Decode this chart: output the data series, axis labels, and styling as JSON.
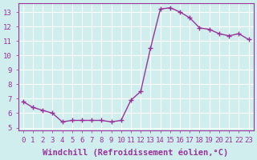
{
  "x": [
    0,
    1,
    2,
    3,
    4,
    5,
    6,
    7,
    8,
    9,
    10,
    11,
    12,
    13,
    14,
    15,
    16,
    17,
    18,
    19,
    20,
    21,
    22,
    23
  ],
  "y": [
    6.8,
    6.4,
    6.2,
    6.0,
    5.4,
    5.5,
    5.5,
    5.5,
    5.5,
    5.4,
    5.5,
    6.9,
    7.5,
    10.5,
    13.2,
    13.3,
    13.0,
    12.6,
    11.9,
    11.8,
    11.5,
    11.35,
    11.5,
    11.1
  ],
  "line_color": "#993399",
  "marker": "+",
  "marker_size": 4,
  "xlabel": "Windchill (Refroidissement éolien,°C)",
  "xlabel_fontsize": 7.5,
  "ylabel_ticks": [
    5,
    6,
    7,
    8,
    9,
    10,
    11,
    12,
    13
  ],
  "xlim": [
    -0.5,
    23.5
  ],
  "ylim": [
    4.8,
    13.6
  ],
  "background_color": "#d0eeee",
  "grid_color": "#ffffff",
  "tick_fontsize": 6.5,
  "line_width": 1.0
}
